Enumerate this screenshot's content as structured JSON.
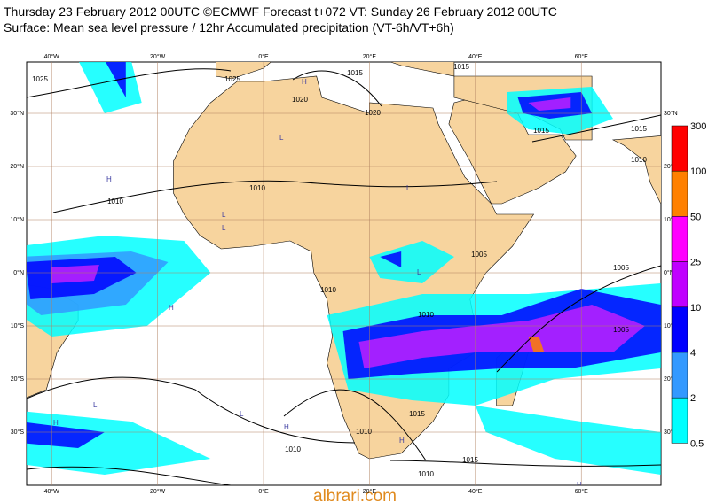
{
  "header": {
    "line1": "Thursday 23 February 2012 00UTC ©ECMWF Forecast t+072 VT: Sunday 26 February 2012 00UTC",
    "line2": "Surface: Mean sea level pressure / 12hr Accumulated precipitation (VT-6h/VT+6h)"
  },
  "axes": {
    "top": [
      "40°W",
      "20°W",
      "0°E",
      "20°E",
      "40°E",
      "60°E"
    ],
    "bottom": [
      "40°W",
      "20°W",
      "0°E",
      "20°E",
      "40°E",
      "60°E"
    ],
    "left": [
      "30°N",
      "20°N",
      "10°N",
      "0°N",
      "10°S",
      "20°S",
      "30°S"
    ],
    "right": [
      "30°N",
      "20°N",
      "10°N",
      "0°N",
      "10°S",
      "20°S",
      "30°S"
    ]
  },
  "colorbar": {
    "labels": [
      "300",
      "100",
      "50",
      "25",
      "10",
      "4",
      "2",
      "0.5"
    ]
  },
  "isobars": [
    "1025",
    "1025",
    "1020",
    "1020",
    "1015",
    "1015",
    "1010",
    "1010",
    "1005",
    "1010",
    "1010",
    "1005",
    "1005",
    "1015",
    "1015",
    "1010",
    "1010",
    "1015",
    "1010",
    "1015",
    "1010"
  ],
  "centers": [
    "H",
    "H",
    "L",
    "L",
    "L",
    "H",
    "L",
    "L",
    "H",
    "L",
    "H",
    "L",
    "H",
    "H"
  ],
  "watermark": "albrari.com"
}
